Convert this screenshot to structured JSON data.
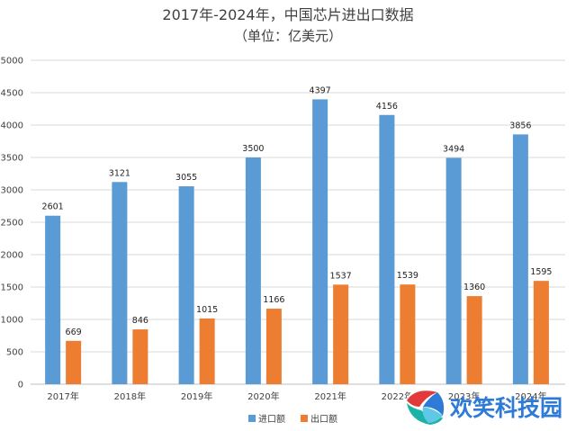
{
  "chart_data": {
    "type": "bar",
    "title": "2017年-2024年，中国芯片进出口数据",
    "subtitle": "（单位：亿美元）",
    "categories": [
      "2017年",
      "2018年",
      "2019年",
      "2020年",
      "2021年",
      "2022年",
      "2023年",
      "2024年"
    ],
    "series": [
      {
        "name": "进口额",
        "values": [
          2601,
          3121,
          3055,
          3500,
          4397,
          4156,
          3494,
          3856
        ],
        "color": "#5b9bd5"
      },
      {
        "name": "出口额",
        "values": [
          669,
          846,
          1015,
          1166,
          1537,
          1539,
          1360,
          1595
        ],
        "color": "#ed7d31"
      }
    ],
    "ylim": [
      0,
      5000
    ],
    "yticks": [
      0,
      500,
      1000,
      1500,
      2000,
      2500,
      3000,
      3500,
      4000,
      4500,
      5000
    ],
    "grid": true,
    "legend": "bottom"
  },
  "watermark": {
    "text": "欢笑科技园",
    "logo_icon": "sphere-logo-icon",
    "colors": {
      "blue": "#2d7bd6",
      "teal": "#1ab3a6",
      "red": "#e23a3a"
    }
  }
}
